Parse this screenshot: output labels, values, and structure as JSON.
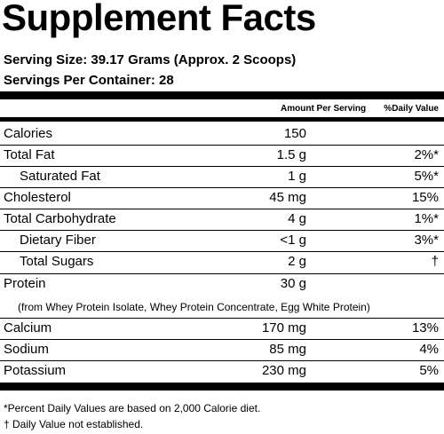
{
  "title": "Supplement Facts",
  "serving_size": "Serving Size: 39.17 Grams (Approx. 2 Scoops)",
  "servings_per_container": "Servings Per Container: 28",
  "header": {
    "amount": "Amount Per Serving",
    "daily_value": "%Daily Value"
  },
  "rows": [
    {
      "name": "Calories",
      "amount": "150",
      "dv": ""
    },
    {
      "name": "Total Fat",
      "amount": "1.5 g",
      "dv": "2%*"
    },
    {
      "name": "Saturated Fat",
      "amount": "1 g",
      "dv": "5%*"
    },
    {
      "name": "Cholesterol",
      "amount": "45 mg",
      "dv": "15%"
    },
    {
      "name": "Total Carbohydrate",
      "amount": "4 g",
      "dv": "1%*"
    },
    {
      "name": "Dietary Fiber",
      "amount": "<1 g",
      "dv": "3%*"
    },
    {
      "name": "Total Sugars",
      "amount": "2 g",
      "dv": "†"
    },
    {
      "name": "Protein",
      "amount": "30 g",
      "dv": ""
    },
    {
      "name": "Calcium",
      "amount": "170 mg",
      "dv": "13%"
    },
    {
      "name": "Sodium",
      "amount": "85 mg",
      "dv": "4%"
    },
    {
      "name": "Potassium",
      "amount": "230 mg",
      "dv": "5%"
    }
  ],
  "protein_sources": "(from Whey Protein Isolate, Whey Protein Concentrate, Egg White Protein)",
  "footnotes": [
    "*Percent Daily Values are based on 2,000 Calorie diet.",
    "† Daily Value not established."
  ]
}
